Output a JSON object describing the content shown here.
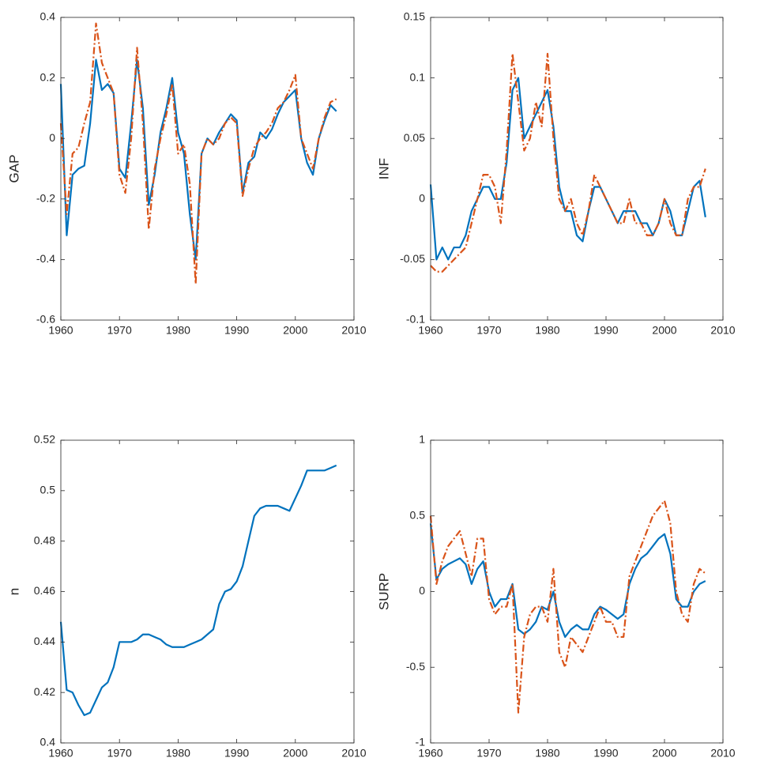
{
  "chart_data": [
    {
      "type": "line",
      "ylabel": "GAP",
      "x": [
        1960,
        1961,
        1962,
        1963,
        1964,
        1965,
        1966,
        1967,
        1968,
        1969,
        1970,
        1971,
        1972,
        1973,
        1974,
        1975,
        1976,
        1977,
        1978,
        1979,
        1980,
        1981,
        1982,
        1983,
        1984,
        1985,
        1986,
        1987,
        1988,
        1989,
        1990,
        1991,
        1992,
        1993,
        1994,
        1995,
        1996,
        1997,
        1998,
        1999,
        2000,
        2001,
        2002,
        2003,
        2004,
        2005,
        2006,
        2007
      ],
      "series": [
        {
          "color": "#0072BD",
          "linestyle": "solid",
          "values": [
            0.18,
            -0.32,
            -0.12,
            -0.1,
            -0.09,
            0.05,
            0.26,
            0.16,
            0.18,
            0.15,
            -0.1,
            -0.13,
            0.05,
            0.26,
            0.1,
            -0.22,
            -0.12,
            0.02,
            0.1,
            0.2,
            0.02,
            -0.05,
            -0.25,
            -0.4,
            -0.05,
            0.0,
            -0.02,
            0.02,
            0.05,
            0.08,
            0.06,
            -0.18,
            -0.08,
            -0.06,
            0.02,
            0.0,
            0.03,
            0.08,
            0.12,
            0.14,
            0.16,
            0.0,
            -0.08,
            -0.12,
            0.0,
            0.06,
            0.11,
            0.09
          ]
        },
        {
          "color": "#D95319",
          "linestyle": "dashdot",
          "values": [
            0.05,
            -0.25,
            -0.05,
            -0.03,
            0.05,
            0.12,
            0.38,
            0.25,
            0.2,
            0.15,
            -0.12,
            -0.18,
            0.0,
            0.3,
            0.05,
            -0.3,
            -0.1,
            0.0,
            0.08,
            0.18,
            -0.05,
            -0.02,
            -0.15,
            -0.48,
            -0.05,
            0.0,
            -0.02,
            0.0,
            0.05,
            0.07,
            0.05,
            -0.19,
            -0.1,
            -0.03,
            0.0,
            0.02,
            0.05,
            0.1,
            0.12,
            0.16,
            0.21,
            0.0,
            -0.05,
            -0.1,
            0.0,
            0.07,
            0.12,
            0.13
          ]
        }
      ],
      "xlim": [
        1960,
        2010
      ],
      "xticks": [
        1960,
        1970,
        1980,
        1990,
        2000,
        2010
      ],
      "ylim": [
        -0.6,
        0.4
      ],
      "yticks": [
        -0.6,
        -0.4,
        -0.2,
        0,
        0.2,
        0.4
      ]
    },
    {
      "type": "line",
      "ylabel": "INF",
      "x": [
        1960,
        1961,
        1962,
        1963,
        1964,
        1965,
        1966,
        1967,
        1968,
        1969,
        1970,
        1971,
        1972,
        1973,
        1974,
        1975,
        1976,
        1977,
        1978,
        1979,
        1980,
        1981,
        1982,
        1983,
        1984,
        1985,
        1986,
        1987,
        1988,
        1989,
        1990,
        1991,
        1992,
        1993,
        1994,
        1995,
        1996,
        1997,
        1998,
        1999,
        2000,
        2001,
        2002,
        2003,
        2004,
        2005,
        2006,
        2007
      ],
      "series": [
        {
          "color": "#0072BD",
          "linestyle": "solid",
          "values": [
            0.012,
            -0.05,
            -0.04,
            -0.05,
            -0.04,
            -0.04,
            -0.03,
            -0.01,
            0.0,
            0.01,
            0.01,
            0.0,
            0.0,
            0.03,
            0.09,
            0.1,
            0.05,
            0.06,
            0.07,
            0.08,
            0.09,
            0.06,
            0.01,
            -0.01,
            -0.01,
            -0.03,
            -0.035,
            -0.01,
            0.01,
            0.01,
            0.0,
            -0.01,
            -0.02,
            -0.01,
            -0.01,
            -0.01,
            -0.02,
            -0.02,
            -0.03,
            -0.02,
            0.0,
            -0.01,
            -0.03,
            -0.03,
            -0.01,
            0.01,
            0.015,
            -0.015
          ]
        },
        {
          "color": "#D95319",
          "linestyle": "dashdot",
          "values": [
            -0.055,
            -0.06,
            -0.06,
            -0.055,
            -0.05,
            -0.045,
            -0.04,
            -0.02,
            0.0,
            0.02,
            0.02,
            0.01,
            -0.02,
            0.04,
            0.12,
            0.08,
            0.04,
            0.05,
            0.08,
            0.06,
            0.12,
            0.05,
            0.0,
            -0.01,
            0.0,
            -0.02,
            -0.03,
            -0.01,
            0.02,
            0.01,
            0.0,
            -0.01,
            -0.02,
            -0.02,
            0.0,
            -0.02,
            -0.02,
            -0.03,
            -0.03,
            -0.02,
            0.0,
            -0.02,
            -0.03,
            -0.03,
            0.0,
            0.01,
            0.01,
            0.025
          ]
        }
      ],
      "xlim": [
        1960,
        2010
      ],
      "xticks": [
        1960,
        1970,
        1980,
        1990,
        2000,
        2010
      ],
      "ylim": [
        -0.1,
        0.15
      ],
      "yticks": [
        -0.1,
        -0.05,
        0,
        0.05,
        0.1,
        0.15
      ]
    },
    {
      "type": "line",
      "ylabel": "n",
      "x": [
        1960,
        1961,
        1962,
        1963,
        1964,
        1965,
        1966,
        1967,
        1968,
        1969,
        1970,
        1971,
        1972,
        1973,
        1974,
        1975,
        1976,
        1977,
        1978,
        1979,
        1980,
        1981,
        1982,
        1983,
        1984,
        1985,
        1986,
        1987,
        1988,
        1989,
        1990,
        1991,
        1992,
        1993,
        1994,
        1995,
        1996,
        1997,
        1998,
        1999,
        2000,
        2001,
        2002,
        2003,
        2004,
        2005,
        2006,
        2007
      ],
      "series": [
        {
          "color": "#0072BD",
          "linestyle": "solid",
          "values": [
            0.448,
            0.421,
            0.42,
            0.415,
            0.411,
            0.412,
            0.417,
            0.422,
            0.424,
            0.43,
            0.44,
            0.44,
            0.44,
            0.441,
            0.443,
            0.443,
            0.442,
            0.441,
            0.439,
            0.438,
            0.438,
            0.438,
            0.439,
            0.44,
            0.441,
            0.443,
            0.445,
            0.455,
            0.46,
            0.461,
            0.464,
            0.47,
            0.48,
            0.49,
            0.493,
            0.494,
            0.494,
            0.494,
            0.493,
            0.492,
            0.497,
            0.502,
            0.508,
            0.508,
            0.508,
            0.508,
            0.509,
            0.51
          ]
        }
      ],
      "xlim": [
        1960,
        2010
      ],
      "xticks": [
        1960,
        1970,
        1980,
        1990,
        2000,
        2010
      ],
      "ylim": [
        0.4,
        0.52
      ],
      "yticks": [
        0.4,
        0.42,
        0.44,
        0.46,
        0.48,
        0.5,
        0.52
      ]
    },
    {
      "type": "line",
      "ylabel": "SURP",
      "x": [
        1960,
        1961,
        1962,
        1963,
        1964,
        1965,
        1966,
        1967,
        1968,
        1969,
        1970,
        1971,
        1972,
        1973,
        1974,
        1975,
        1976,
        1977,
        1978,
        1979,
        1980,
        1981,
        1982,
        1983,
        1984,
        1985,
        1986,
        1987,
        1988,
        1989,
        1990,
        1991,
        1992,
        1993,
        1994,
        1995,
        1996,
        1997,
        1998,
        1999,
        2000,
        2001,
        2002,
        2003,
        2004,
        2005,
        2006,
        2007
      ],
      "series": [
        {
          "color": "#0072BD",
          "linestyle": "solid",
          "values": [
            0.45,
            0.08,
            0.15,
            0.18,
            0.2,
            0.22,
            0.18,
            0.05,
            0.15,
            0.2,
            0.0,
            -0.1,
            -0.05,
            -0.05,
            0.05,
            -0.25,
            -0.28,
            -0.25,
            -0.2,
            -0.1,
            -0.12,
            0.0,
            -0.2,
            -0.3,
            -0.25,
            -0.22,
            -0.25,
            -0.25,
            -0.15,
            -0.1,
            -0.12,
            -0.15,
            -0.18,
            -0.15,
            0.05,
            0.15,
            0.22,
            0.25,
            0.3,
            0.35,
            0.38,
            0.25,
            -0.05,
            -0.1,
            -0.1,
            0.0,
            0.05,
            0.07
          ]
        },
        {
          "color": "#D95319",
          "linestyle": "dashdot",
          "values": [
            0.5,
            0.05,
            0.2,
            0.3,
            0.35,
            0.4,
            0.25,
            0.1,
            0.35,
            0.35,
            -0.05,
            -0.15,
            -0.1,
            -0.1,
            0.05,
            -0.8,
            -0.3,
            -0.15,
            -0.1,
            -0.1,
            -0.2,
            0.15,
            -0.4,
            -0.5,
            -0.3,
            -0.35,
            -0.4,
            -0.3,
            -0.2,
            -0.1,
            -0.2,
            -0.2,
            -0.3,
            -0.3,
            0.1,
            0.2,
            0.3,
            0.4,
            0.5,
            0.55,
            0.6,
            0.45,
            0.0,
            -0.15,
            -0.2,
            0.05,
            0.15,
            0.12
          ]
        }
      ],
      "xlim": [
        1960,
        2010
      ],
      "xticks": [
        1960,
        1970,
        1980,
        1990,
        2000,
        2010
      ],
      "ylim": [
        -1,
        1
      ],
      "yticks": [
        -1,
        -0.5,
        0,
        0.5,
        1
      ]
    }
  ]
}
